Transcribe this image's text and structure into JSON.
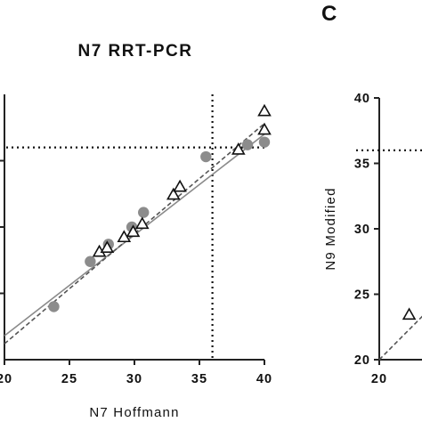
{
  "chart_data": [
    {
      "panel": "",
      "type": "scatter",
      "title": "N7 RRT-PCR",
      "xlabel": "N7 Hoffmann",
      "ylabel": "",
      "xlim": [
        20,
        40
      ],
      "ylim": [
        20,
        40
      ],
      "x_ticks": [
        "20",
        "25",
        "30",
        "35",
        "40"
      ],
      "y_ticks": [],
      "grid": false,
      "reference_lines": {
        "x": 36,
        "y": 36
      },
      "series": [
        {
          "marker": "filled-circle",
          "color": "#8c8c8c",
          "points": [
            {
              "x": 23.8,
              "y": 24.0
            },
            {
              "x": 26.6,
              "y": 27.4
            },
            {
              "x": 28.0,
              "y": 28.7
            },
            {
              "x": 29.8,
              "y": 30.0
            },
            {
              "x": 30.7,
              "y": 31.1
            },
            {
              "x": 35.5,
              "y": 35.3
            },
            {
              "x": 38.7,
              "y": 36.2
            },
            {
              "x": 40.0,
              "y": 36.4
            }
          ],
          "trend": [
            [
              20,
              21.8
            ],
            [
              40,
              37.0
            ]
          ]
        },
        {
          "marker": "open-triangle",
          "color": "#111111",
          "points": [
            {
              "x": 27.3,
              "y": 28.1
            },
            {
              "x": 27.9,
              "y": 28.4
            },
            {
              "x": 29.2,
              "y": 29.2
            },
            {
              "x": 29.9,
              "y": 29.6
            },
            {
              "x": 30.6,
              "y": 30.2
            },
            {
              "x": 33.0,
              "y": 32.4
            },
            {
              "x": 33.5,
              "y": 33.0
            },
            {
              "x": 38.0,
              "y": 35.8
            },
            {
              "x": 40.0,
              "y": 37.3
            },
            {
              "x": 40.0,
              "y": 38.7
            }
          ],
          "trend": [
            [
              20,
              21.2
            ],
            [
              40,
              37.8
            ]
          ]
        }
      ]
    },
    {
      "panel": "C",
      "type": "scatter",
      "title": "",
      "xlabel": "",
      "ylabel": "N9 Modified",
      "xlim": [
        20,
        40
      ],
      "ylim": [
        20,
        40
      ],
      "x_ticks": [
        "20"
      ],
      "y_ticks": [
        "20",
        "25",
        "30",
        "35",
        "40"
      ],
      "grid": false,
      "reference_lines": {
        "y": 36
      },
      "series": [
        {
          "marker": "open-triangle",
          "color": "#111111",
          "points": [
            {
              "x": 22.3,
              "y": 23.4
            }
          ],
          "trend": [
            [
              20,
              20.0
            ],
            [
              23.5,
              23.5
            ]
          ]
        }
      ]
    }
  ]
}
